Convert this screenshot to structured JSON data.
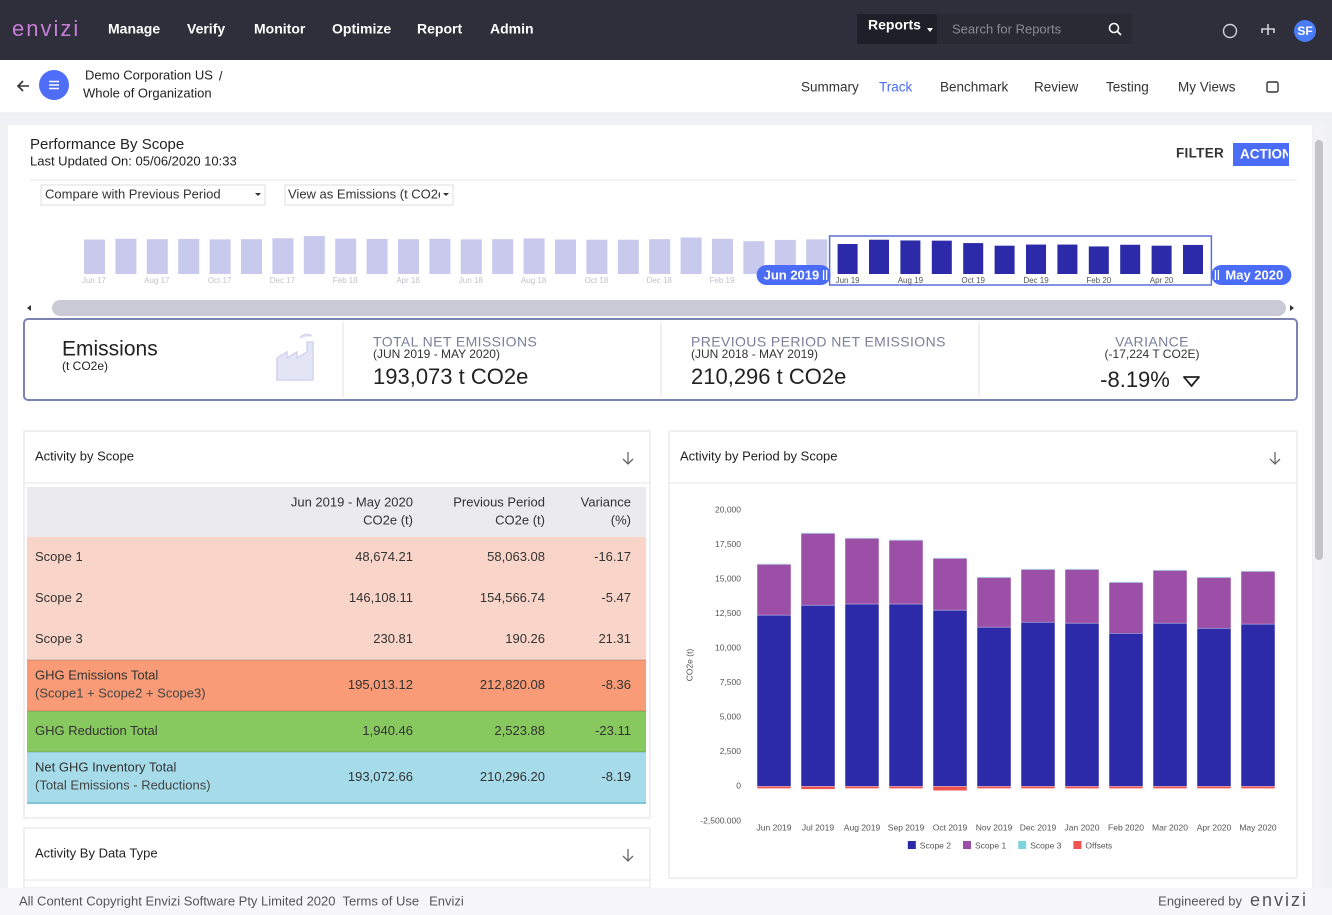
{
  "nav": {
    "brand": "envizi",
    "items": [
      "Manage",
      "Verify",
      "Monitor",
      "Optimize",
      "Report",
      "Admin"
    ],
    "search_scope": "Reports",
    "search_placeholder": "Search for Reports",
    "avatar": "SF"
  },
  "breadcrumb": {
    "organization": "Demo Corporation US",
    "separator": "/",
    "location": "Whole of Organization"
  },
  "tabs": {
    "items": [
      "Summary",
      "Track",
      "Benchmark",
      "Review",
      "Testing",
      "My Views"
    ],
    "active": 1
  },
  "report": {
    "title": "Performance By Scope",
    "updated": "Last Updated On: 05/06/2020 10:33",
    "buttons": [
      "FILTER",
      "ACTION"
    ],
    "selects": [
      "Compare with Previous Period",
      "View as Emissions (t CO2e)"
    ]
  },
  "timeline": {
    "categories": [
      "Jun 17",
      null,
      "Aug 17",
      null,
      "Oct 17",
      null,
      "Dec 17",
      null,
      "Feb 18",
      null,
      "Apr 18",
      null,
      "Jun 18",
      null,
      "Aug 18",
      null,
      "Oct 18",
      null,
      "Dec 18",
      null,
      "Feb 19",
      null,
      "Apr 19",
      null,
      "Jun 19",
      null,
      "Aug 19",
      null,
      "Oct 19",
      null,
      "Dec 19",
      null,
      "Feb 20",
      null,
      "Apr 20",
      null
    ],
    "values": [
      18500,
      18900,
      18700,
      18800,
      18600,
      18700,
      19200,
      20400,
      19000,
      18800,
      18700,
      18900,
      18600,
      18700,
      19100,
      18500,
      18400,
      18400,
      18700,
      19600,
      18900,
      17600,
      18300,
      18600,
      16100,
      18400,
      18000,
      17900,
      16600,
      15200,
      15800,
      15800,
      14800,
      15700,
      15200,
      15600
    ],
    "selected_start": 24,
    "start_label": "Jun 2019",
    "end_label": "May 2020"
  },
  "summary": {
    "title": "Emissions",
    "unit": "(t CO2e)",
    "metrics": [
      {
        "label": "TOTAL NET EMISSIONS",
        "period": "(JUN 2019 - MAY 2020)",
        "value": "193,073 t CO2e"
      },
      {
        "label": "PREVIOUS PERIOD NET EMISSIONS",
        "period": "(JUN 2018 - MAY 2019)",
        "value": "210,296 t CO2e"
      },
      {
        "label": "VARIANCE",
        "period": "(-17,224 T CO2E)",
        "value": "-8.19%"
      }
    ]
  },
  "table": {
    "title": "Activity by Scope",
    "columns": [
      {
        "title": "Jun 2019 - May 2020",
        "unit": "CO2e (t)"
      },
      {
        "title": "Previous Period",
        "unit": "CO2e (t)"
      },
      {
        "title": "Variance",
        "unit": "(%)"
      }
    ],
    "rows": [
      {
        "label": "Scope 1",
        "cells": [
          "48,674.21",
          "58,063.08",
          "-16.17"
        ],
        "color": "#f9d5c9"
      },
      {
        "label": "Scope 2",
        "cells": [
          "146,108.11",
          "154,566.74",
          "-5.47"
        ],
        "color": "#f9d5c9"
      },
      {
        "label": "Scope 3",
        "cells": [
          "230.81",
          "190.26",
          "21.31"
        ],
        "color": "#f9d5c9"
      },
      {
        "label": "GHG Emissions Total",
        "sublabel": "(Scope1 + Scope2 + Scope3)",
        "cells": [
          "195,013.12",
          "212,820.08",
          "-8.36"
        ],
        "color": "#f89b76"
      },
      {
        "label": "GHG Reduction Total",
        "cells": [
          "1,940.46",
          "2,523.88",
          "-23.11"
        ],
        "color": "#88c95f"
      },
      {
        "label": "Net GHG Inventory Total",
        "sublabel": "(Total Emissions - Reductions)",
        "cells": [
          "193,072.66",
          "210,296.20",
          "-8.19"
        ],
        "color": "#a6dcea"
      }
    ]
  },
  "chart_data": {
    "type": "bar",
    "stacked": true,
    "title": "Activity by Period by Scope",
    "y_label": "CO2e (t)",
    "categories": [
      "Jun 2019",
      "Jul 2019",
      "Aug 2019",
      "Sep 2019",
      "Oct 2019",
      "Nov 2019",
      "Dec 2019",
      "Jan 2020",
      "Feb 2020",
      "Mar 2020",
      "Apr 2020",
      "May 2020"
    ],
    "series": [
      {
        "name": "Scope 2",
        "color": "#2c2aa8",
        "values": [
          12400,
          13120,
          13200,
          13200,
          12760,
          11530,
          11890,
          11820,
          11090,
          11820,
          11450,
          11750
        ]
      },
      {
        "name": "Scope 1",
        "color": "#9c4fa6",
        "values": [
          3700,
          5220,
          4780,
          4640,
          3770,
          3620,
          3840,
          3910,
          3700,
          3840,
          3700,
          3840
        ]
      },
      {
        "name": "Scope 3",
        "color": "#7fd4de",
        "values": [
          20,
          20,
          20,
          20,
          20,
          20,
          20,
          20,
          20,
          20,
          20,
          20
        ]
      },
      {
        "name": "Offsets",
        "color": "#ef5350",
        "values": [
          -150,
          -200,
          -150,
          -150,
          -300,
          -150,
          -150,
          -150,
          -150,
          -150,
          -150,
          -150
        ]
      }
    ],
    "ylim": [
      -2500,
      20000
    ],
    "yticks": [
      {
        "value": 20000,
        "label": "20,000"
      },
      {
        "value": 17500,
        "label": "17,500"
      },
      {
        "value": 15000,
        "label": "15,000"
      },
      {
        "value": 12500,
        "label": "12,500"
      },
      {
        "value": 10000,
        "label": "10,000"
      },
      {
        "value": 7500,
        "label": "7,500"
      },
      {
        "value": 5000,
        "label": "5,000"
      },
      {
        "value": 2500,
        "label": "2,500"
      },
      0,
      {
        "value": -2500,
        "label": "-2,500.000"
      }
    ],
    "grid": false,
    "legend": "bottom"
  },
  "data_type_panel": {
    "title": "Activity By Data Type"
  },
  "footer": {
    "copyright": "All Content Copyright Envizi Software Pty Limited 2020",
    "links": [
      "Terms of Use",
      "Envizi"
    ],
    "credit": "Engineered by",
    "brand": "envizi"
  }
}
